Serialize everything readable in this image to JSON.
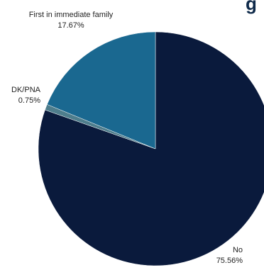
{
  "chart_data": {
    "type": "pie",
    "title_fragment": "g",
    "slices": [
      {
        "label": "No",
        "value": 75.56,
        "value_label": "75.56%",
        "color": "#0a1a3c"
      },
      {
        "label": "DK/PNA",
        "value": 0.75,
        "value_label": "0.75%",
        "color": "#4e7d8c"
      },
      {
        "label": "First in immediate family",
        "value": 17.67,
        "value_label": "17.67%",
        "color": "#1a6890"
      }
    ],
    "start_angle_deg": 0,
    "direction": "clockwise",
    "legend": "none"
  }
}
